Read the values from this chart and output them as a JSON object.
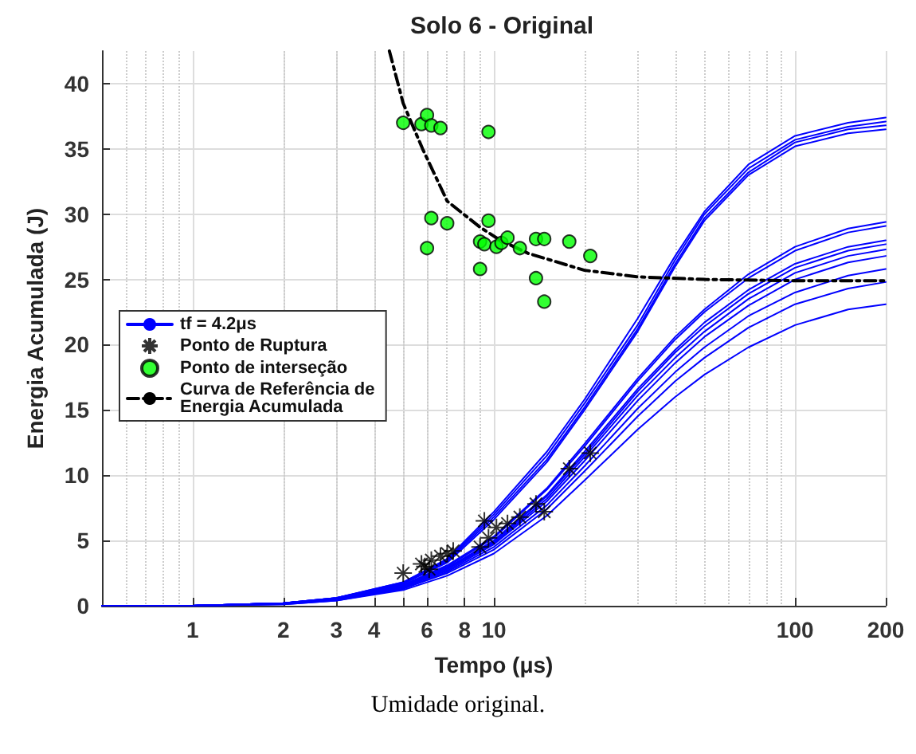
{
  "chart_data": {
    "type": "line",
    "title": "Solo 6 - Original",
    "xlabel": "Tempo (μs)",
    "ylabel": "Energia Acumulada (J)",
    "annotations": [
      "Umidade original."
    ],
    "log": "x",
    "xlim": [
      0.5,
      200
    ],
    "xticks": [
      1,
      2,
      3,
      4,
      {
        "value": 5,
        "label": null
      },
      6,
      8,
      10,
      100,
      200
    ],
    "ylim": [
      0,
      42.5
    ],
    "yticks": [
      0,
      5,
      10,
      15,
      20,
      25,
      30,
      35,
      40
    ],
    "grid": true,
    "legend": "left",
    "series": [
      {
        "name": "tf = 4.2μs",
        "color": "#0000ff",
        "marker": "none",
        "x": [
          0.5,
          1,
          2,
          3,
          5,
          7,
          10,
          15,
          20,
          30,
          40,
          50,
          70,
          100,
          150,
          200
        ],
        "values": [
          0,
          0,
          0.2,
          0.6,
          1.8,
          3.6,
          7.2,
          11.8,
          15.8,
          22,
          26.8,
          30.2,
          33.8,
          36,
          37,
          37.4
        ]
      },
      {
        "color": "#0000ff",
        "marker": "none",
        "x": [
          0.5,
          1,
          2,
          3,
          5,
          7,
          10,
          15,
          20,
          30,
          40,
          50,
          70,
          100,
          150,
          200
        ],
        "values": [
          0,
          0,
          0.2,
          0.6,
          1.8,
          3.5,
          7,
          11.5,
          15.5,
          21.5,
          26.5,
          30,
          33.5,
          35.7,
          36.7,
          37.1
        ]
      },
      {
        "color": "#0000ff",
        "marker": "none",
        "x": [
          0.5,
          1,
          2,
          3,
          5,
          7,
          10,
          15,
          20,
          30,
          40,
          50,
          70,
          100,
          150,
          200
        ],
        "values": [
          0,
          0,
          0.2,
          0.6,
          1.7,
          3.4,
          6.8,
          11.2,
          15.2,
          21.2,
          26.2,
          29.7,
          33.2,
          35.5,
          36.5,
          36.8
        ]
      },
      {
        "color": "#0000ff",
        "marker": "none",
        "x": [
          0.5,
          1,
          2,
          3,
          5,
          7,
          10,
          15,
          20,
          30,
          40,
          50,
          70,
          100,
          150,
          200
        ],
        "values": [
          0,
          0,
          0.2,
          0.6,
          1.7,
          3.3,
          6.6,
          11,
          15,
          21,
          26,
          29.5,
          33,
          35.2,
          36.2,
          36.5
        ]
      },
      {
        "color": "#0000ff",
        "marker": "none",
        "x": [
          0.5,
          1,
          2,
          3,
          5,
          7,
          10,
          15,
          20,
          30,
          40,
          50,
          70,
          100,
          150,
          200
        ],
        "values": [
          0,
          0,
          0.2,
          0.5,
          1.6,
          3.1,
          5.3,
          9,
          12.4,
          17.4,
          20.6,
          22.7,
          25.4,
          27.5,
          28.9,
          29.4
        ]
      },
      {
        "color": "#0000ff",
        "marker": "none",
        "x": [
          0.5,
          1,
          2,
          3,
          5,
          7,
          10,
          15,
          20,
          30,
          40,
          50,
          70,
          100,
          150,
          200
        ],
        "values": [
          0,
          0,
          0.2,
          0.5,
          1.6,
          3,
          5.2,
          8.9,
          12.2,
          17.2,
          20.4,
          22.5,
          25.1,
          27.2,
          28.6,
          29.1
        ]
      },
      {
        "color": "#0000ff",
        "marker": "none",
        "x": [
          0.5,
          1,
          2,
          3,
          5,
          7,
          10,
          15,
          20,
          30,
          40,
          50,
          70,
          100,
          150,
          200
        ],
        "values": [
          0,
          0,
          0.2,
          0.5,
          1.5,
          2.9,
          5,
          8.5,
          11.8,
          16.6,
          19.6,
          21.7,
          24.2,
          26.2,
          27.5,
          28
        ]
      },
      {
        "color": "#0000ff",
        "marker": "none",
        "x": [
          0.5,
          1,
          2,
          3,
          5,
          7,
          10,
          15,
          20,
          30,
          40,
          50,
          70,
          100,
          150,
          200
        ],
        "values": [
          0,
          0,
          0.2,
          0.5,
          1.5,
          2.9,
          4.9,
          8.4,
          11.6,
          16.4,
          19.4,
          21.4,
          23.9,
          25.9,
          27.2,
          27.7
        ]
      },
      {
        "color": "#0000ff",
        "marker": "none",
        "x": [
          0.5,
          1,
          2,
          3,
          5,
          7,
          10,
          15,
          20,
          30,
          40,
          50,
          70,
          100,
          150,
          200
        ],
        "values": [
          0,
          0,
          0.2,
          0.5,
          1.4,
          2.8,
          4.8,
          8.2,
          11.4,
          16.1,
          19,
          21,
          23.5,
          25.5,
          26.8,
          27.3
        ]
      },
      {
        "color": "#0000ff",
        "marker": "none",
        "x": [
          0.5,
          1,
          2,
          3,
          5,
          7,
          10,
          15,
          20,
          30,
          40,
          50,
          70,
          100,
          150,
          200
        ],
        "values": [
          0,
          0,
          0.2,
          0.5,
          1.4,
          2.7,
          4.7,
          8,
          11.1,
          15.7,
          18.6,
          20.6,
          23,
          25,
          26.3,
          26.8
        ]
      },
      {
        "color": "#0000ff",
        "marker": "none",
        "x": [
          0.5,
          1,
          2,
          3,
          5,
          7,
          10,
          15,
          20,
          30,
          40,
          50,
          70,
          100,
          150,
          200
        ],
        "values": [
          0,
          0,
          0.2,
          0.5,
          1.3,
          2.6,
          4.5,
          7.7,
          10.7,
          15.1,
          17.9,
          19.8,
          22.2,
          24,
          25.3,
          25.8
        ]
      },
      {
        "color": "#0000ff",
        "marker": "none",
        "x": [
          0.5,
          1,
          2,
          3,
          5,
          7,
          10,
          15,
          20,
          30,
          40,
          50,
          70,
          100,
          150,
          200
        ],
        "values": [
          0,
          0,
          0.1,
          0.4,
          1.3,
          2.5,
          4.3,
          7.4,
          10.3,
          14.5,
          17.2,
          19,
          21.3,
          23.1,
          24.3,
          24.8
        ]
      },
      {
        "color": "#0000ff",
        "marker": "none",
        "x": [
          0.5,
          1,
          2,
          3,
          5,
          7,
          10,
          15,
          20,
          30,
          40,
          50,
          70,
          100,
          150,
          200
        ],
        "values": [
          0,
          0,
          0.1,
          0.4,
          1.2,
          2.3,
          4,
          6.9,
          9.6,
          13.5,
          16,
          17.7,
          19.8,
          21.5,
          22.7,
          23.1
        ]
      },
      {
        "type": "scatter",
        "name": "Ponto de Ruptura",
        "color": "#000000",
        "marker": "cross",
        "x": [
          5,
          5.75,
          5.9,
          6.1,
          6.2,
          6.65,
          7,
          7.33,
          9,
          9.3,
          9.6,
          10.2,
          11.1,
          12.2,
          13.8,
          14.7,
          17.8,
          20.9
        ],
        "values": [
          2.5,
          3.2,
          3,
          2.8,
          3.5,
          3.8,
          4,
          4.2,
          4.5,
          6.5,
          5.2,
          6,
          6.3,
          6.8,
          7.8,
          7.2,
          10.5,
          11.7
        ]
      },
      {
        "type": "scatter",
        "name": "Ponto de interseção",
        "color": "#00ff00",
        "marker": "circle",
        "x": [
          5,
          5.75,
          6,
          6.2,
          6.65,
          9.6,
          6.2,
          7,
          9.6,
          6,
          9,
          9.3,
          10.2,
          10.6,
          11.1,
          12.2,
          13.8,
          14.7,
          17.8,
          20.9,
          9,
          13.8,
          14.7
        ],
        "values": [
          37,
          36.9,
          37.6,
          36.8,
          36.6,
          36.3,
          29.7,
          29.3,
          29.5,
          27.4,
          27.9,
          27.7,
          27.5,
          27.8,
          28.2,
          27.4,
          28.1,
          28.1,
          27.9,
          26.8,
          25.8,
          25.1,
          23.3
        ]
      },
      {
        "name": "Curva de Referência de Energia Acumulada",
        "color": "#000000",
        "marker": "none",
        "line_style": "dashed",
        "x": [
          4.5,
          5,
          5.8,
          7,
          9,
          10.5,
          13,
          20,
          30,
          50,
          100,
          200
        ],
        "values": [
          42.5,
          38.5,
          35,
          31,
          29,
          28,
          27,
          25.7,
          25.2,
          25,
          24.9,
          24.9
        ]
      }
    ]
  }
}
